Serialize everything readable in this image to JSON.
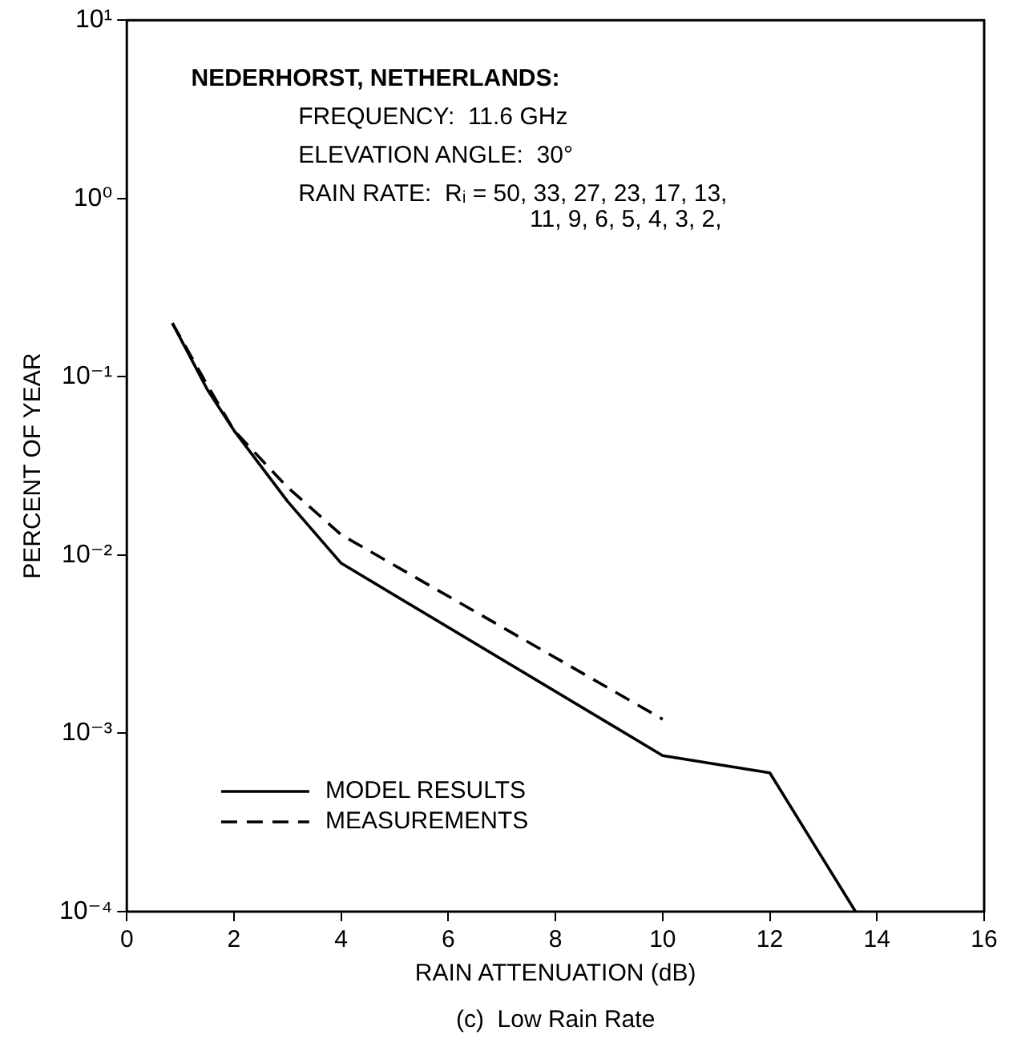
{
  "chart_data": {
    "type": "line",
    "xlabel": "RAIN ATTENUATION (dB)",
    "ylabel": "PERCENT OF YEAR",
    "log": "y",
    "grid": false,
    "legend": "bottom left",
    "marker": "none",
    "xlim": [
      0,
      16
    ],
    "xticks": [
      0,
      2,
      4,
      6,
      8,
      10,
      12,
      14,
      16
    ],
    "ylim": [
      0.0001,
      10
    ],
    "yticks": [
      {
        "value": 0.0001,
        "label": "10⁻⁴"
      },
      {
        "value": 0.001,
        "label": "10⁻³"
      },
      {
        "value": 0.01,
        "label": "10⁻²"
      },
      {
        "value": 0.1,
        "label": "10⁻¹"
      },
      {
        "value": 1,
        "label": "10⁰"
      },
      {
        "value": 10,
        "label": "10¹"
      }
    ],
    "series": [
      {
        "name": "MODEL RESULTS",
        "color": "#000000",
        "line_style": "solid",
        "x": [
          0.85,
          1.5,
          2,
          3,
          4,
          10,
          12,
          13.6
        ],
        "values": [
          0.2,
          0.085,
          0.05,
          0.02,
          0.009,
          0.00075,
          0.0006,
          0.0001
        ]
      },
      {
        "name": "MEASUREMENTS",
        "color": "#000000",
        "line_style": "dashed",
        "x": [
          0.85,
          1.5,
          2,
          3,
          4,
          10
        ],
        "values": [
          0.2,
          0.09,
          0.05,
          0.024,
          0.013,
          0.0012
        ]
      }
    ],
    "annotations": [
      "NEDERHORST, NETHERLANDS:",
      "FREQUENCY:  11.6 GHz",
      "ELEVATION ANGLE:  30°",
      "RAIN RATE:  Rᵢ = 50, 33, 27, 23, 17, 13,",
      "11, 9, 6, 5, 4, 3, 2,",
      "(c)  Low Rain Rate"
    ]
  }
}
